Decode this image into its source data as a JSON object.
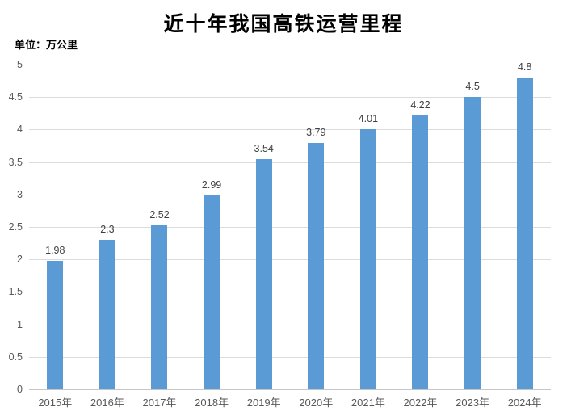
{
  "title": "近十年我国高铁运营里程",
  "unit_label": "单位：万公里",
  "colors": {
    "bar": "#5b9bd5",
    "gridline": "#dcdcdc",
    "axis_line": "#c6c6c6",
    "tick_text": "#595959",
    "data_label_text": "#404040",
    "title_text": "#000000"
  },
  "chart_data": {
    "type": "bar",
    "title": "近十年我国高铁运营里程",
    "ylabel": "单位：万公里",
    "xlabel": "",
    "categories": [
      "2015年",
      "2016年",
      "2017年",
      "2018年",
      "2019年",
      "2020年",
      "2021年",
      "2022年",
      "2023年",
      "2024年"
    ],
    "values": [
      1.98,
      2.3,
      2.52,
      2.99,
      3.54,
      3.79,
      4.01,
      4.22,
      4.5,
      4.8
    ],
    "value_labels": [
      "1.98",
      "2.3",
      "2.52",
      "2.99",
      "3.54",
      "3.79",
      "4.01",
      "4.22",
      "4.5",
      "4.8"
    ],
    "ylim": [
      0,
      5
    ],
    "ytick_labels": [
      "5",
      "4.5",
      "4",
      "3.5",
      "3",
      "2.5",
      "2",
      "1.5",
      "1",
      "0.5",
      "0"
    ],
    "grid": true,
    "legend": false
  }
}
